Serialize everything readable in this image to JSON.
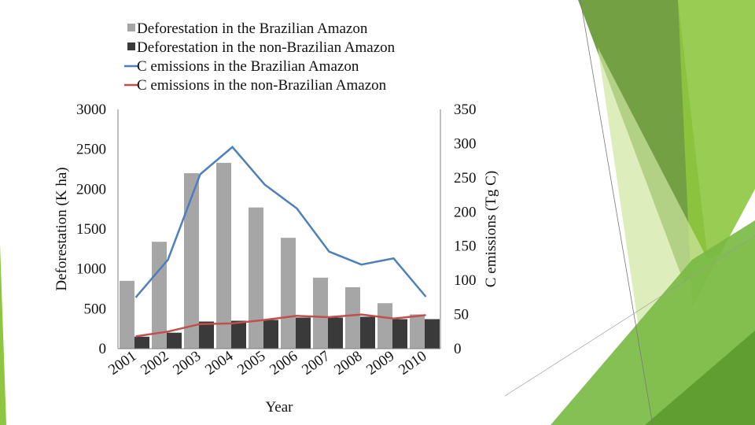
{
  "chart_data": {
    "type": "bar+line",
    "categories": [
      "2001",
      "2002",
      "2003",
      "2004",
      "2005",
      "2006",
      "2007",
      "2008",
      "2009",
      "2010"
    ],
    "bar_series": [
      {
        "name": "Deforestation in the Brazilian Amazon",
        "color": "#a6a6a6",
        "values": [
          850,
          1340,
          2200,
          2330,
          1770,
          1390,
          890,
          770,
          570,
          430
        ]
      },
      {
        "name": "Deforestation in the non-Brazilian Amazon",
        "color": "#3a3a3a",
        "values": [
          150,
          200,
          340,
          350,
          360,
          390,
          390,
          400,
          370,
          370
        ]
      }
    ],
    "line_series": [
      {
        "name": "C emissions in the Brazilian Amazon",
        "color": "#4f7fba",
        "values": [
          75,
          130,
          255,
          295,
          240,
          205,
          142,
          123,
          132,
          76
        ]
      },
      {
        "name": "C emissions in the non-Brazilian Amazon",
        "color": "#c0504d",
        "values": [
          18,
          25,
          36,
          37,
          42,
          48,
          46,
          50,
          44,
          49
        ]
      }
    ],
    "xlabel": "Year",
    "ylabel": "Deforestation (K ha)",
    "y2label": "C emissions (Tg C)",
    "ylim": [
      0,
      3000
    ],
    "y2lim": [
      0,
      350
    ],
    "yticks": [
      "0",
      "500",
      "1000",
      "1500",
      "2000",
      "2500",
      "3000"
    ],
    "y2ticks": [
      "0",
      "50",
      "100",
      "150",
      "200",
      "250",
      "300",
      "350"
    ],
    "legend_position": "top",
    "grid": false
  }
}
